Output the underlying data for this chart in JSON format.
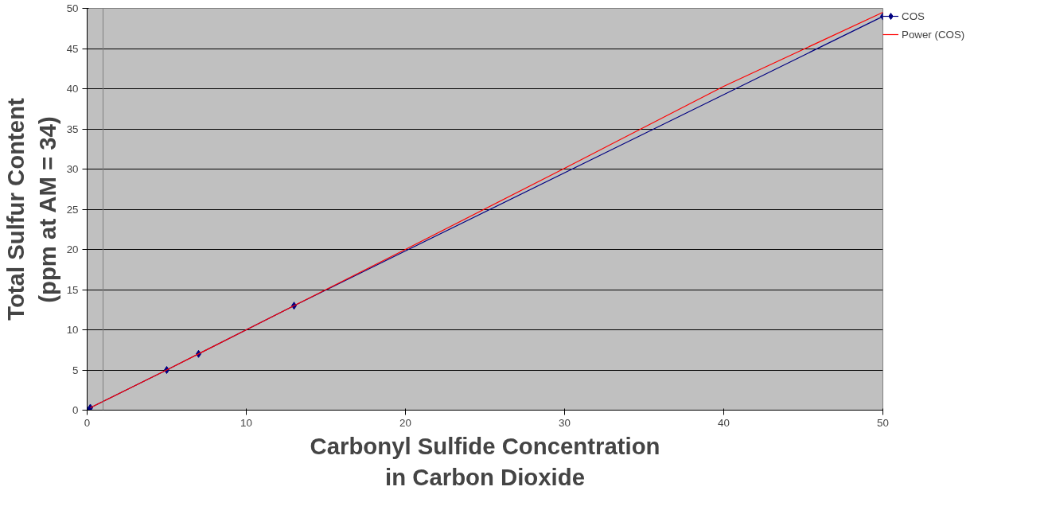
{
  "chart_data": {
    "type": "line",
    "xlabel": "Carbonyl Sulfide Concentration\nin Carbon Dioxide",
    "ylabel": "Total Sulfur Content\n(ppm at AM = 34)",
    "xlim": [
      0,
      50
    ],
    "ylim": [
      0,
      50
    ],
    "xticks": [
      0,
      10,
      20,
      30,
      40,
      50
    ],
    "yticks": [
      0,
      5,
      10,
      15,
      20,
      25,
      30,
      35,
      40,
      45,
      50
    ],
    "grid": "y",
    "legend": "right",
    "series": [
      {
        "name": "COS",
        "marker": "diamond",
        "color": "#000080",
        "x": [
          0,
          0.2,
          5,
          7,
          13,
          50
        ],
        "values": [
          0,
          0.3,
          5,
          7,
          13,
          49
        ]
      },
      {
        "name": "Power (COS)",
        "marker": "none",
        "color": "#ff0000",
        "x": [
          0.2,
          5,
          10,
          20,
          30,
          40,
          50
        ],
        "values": [
          0.3,
          5,
          10,
          20,
          30.1,
          40.3,
          49.5
        ]
      }
    ],
    "ref_lines": [
      {
        "axis": "x",
        "value": 1,
        "label": null,
        "color": "#808080"
      }
    ]
  }
}
